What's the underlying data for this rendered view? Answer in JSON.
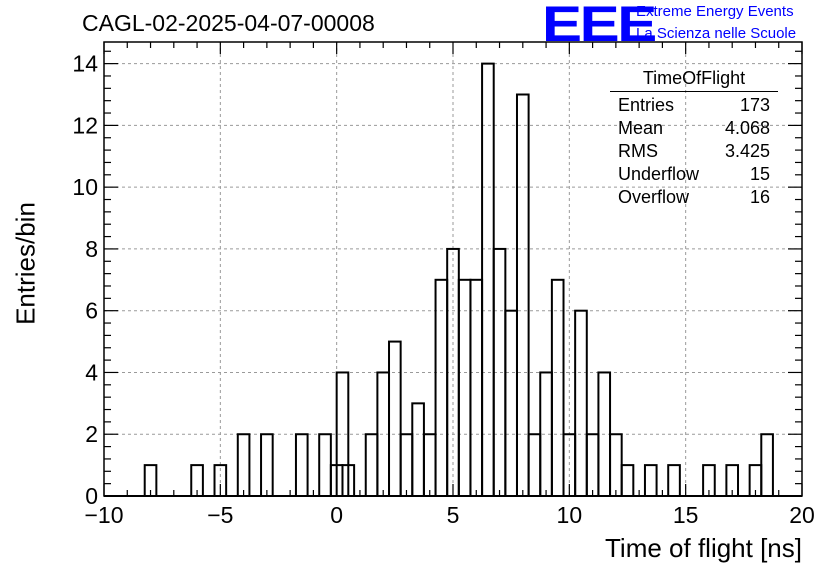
{
  "title": "CAGL-02-2025-04-07-00008",
  "logo": {
    "mark": "EEE",
    "line1": "Extreme Energy Events",
    "line2": "La Scienza nelle Scuole",
    "color": "#0000ff"
  },
  "stats_box": {
    "title": "TimeOfFlight",
    "rows": [
      {
        "label": "Entries",
        "value": "173"
      },
      {
        "label": "Mean",
        "value": "4.068"
      },
      {
        "label": "RMS",
        "value": "3.425"
      },
      {
        "label": "Underflow",
        "value": "15"
      },
      {
        "label": "Overflow",
        "value": "16"
      }
    ]
  },
  "chart_data": {
    "type": "histogram",
    "title": "CAGL-02-2025-04-07-00008",
    "xlabel": "Time of flight [ns]",
    "ylabel": "Entries/bin",
    "xlim": [
      -10,
      20
    ],
    "ylim": [
      0,
      14.7
    ],
    "bin_width": 0.5,
    "grid": true,
    "xticks": [
      -10,
      -5,
      0,
      5,
      10,
      15,
      20
    ],
    "xtick_labels": [
      "−10",
      "−5",
      "0",
      "5",
      "10",
      "15",
      "20"
    ],
    "yticks": [
      0,
      2,
      4,
      6,
      8,
      10,
      12,
      14
    ],
    "ytick_labels": [
      "0",
      "2",
      "4",
      "6",
      "8",
      "10",
      "12",
      "14"
    ],
    "bins": [
      {
        "x": -8.0,
        "y": 1
      },
      {
        "x": -6.0,
        "y": 1
      },
      {
        "x": -5.0,
        "y": 1
      },
      {
        "x": -4.0,
        "y": 2
      },
      {
        "x": -3.0,
        "y": 2
      },
      {
        "x": -1.5,
        "y": 2
      },
      {
        "x": -1.0,
        "y": 0
      },
      {
        "x": -0.5,
        "y": 2
      },
      {
        "x": -0.25,
        "y": 0
      },
      {
        "x": 0.0,
        "y": 1
      },
      {
        "x": 0.25,
        "y": 4
      },
      {
        "x": 0.5,
        "y": 1
      },
      {
        "x": 1.0,
        "y": 0
      },
      {
        "x": 1.5,
        "y": 2
      },
      {
        "x": 2.0,
        "y": 4
      },
      {
        "x": 2.5,
        "y": 5
      },
      {
        "x": 3.0,
        "y": 2
      },
      {
        "x": 3.5,
        "y": 3
      },
      {
        "x": 4.0,
        "y": 2
      },
      {
        "x": 4.5,
        "y": 7
      },
      {
        "x": 5.0,
        "y": 8
      },
      {
        "x": 5.5,
        "y": 7
      },
      {
        "x": 6.0,
        "y": 7
      },
      {
        "x": 6.5,
        "y": 14
      },
      {
        "x": 7.0,
        "y": 8
      },
      {
        "x": 7.5,
        "y": 6
      },
      {
        "x": 8.0,
        "y": 13
      },
      {
        "x": 8.5,
        "y": 2
      },
      {
        "x": 9.0,
        "y": 4
      },
      {
        "x": 9.5,
        "y": 7
      },
      {
        "x": 10.0,
        "y": 2
      },
      {
        "x": 10.5,
        "y": 6
      },
      {
        "x": 11.0,
        "y": 2
      },
      {
        "x": 11.5,
        "y": 4
      },
      {
        "x": 12.0,
        "y": 2
      },
      {
        "x": 12.5,
        "y": 1
      },
      {
        "x": 13.5,
        "y": 1
      },
      {
        "x": 14.5,
        "y": 1
      },
      {
        "x": 16.0,
        "y": 1
      },
      {
        "x": 17.0,
        "y": 1
      },
      {
        "x": 18.0,
        "y": 1
      },
      {
        "x": 18.5,
        "y": 2
      }
    ]
  }
}
